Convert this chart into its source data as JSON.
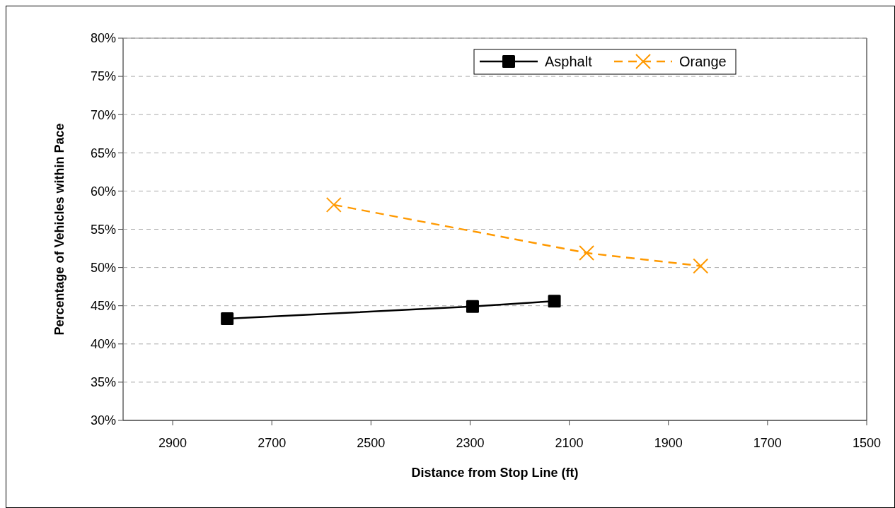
{
  "chart_data": {
    "type": "line",
    "xlabel": "Distance from Stop Line (ft)",
    "ylabel": "Percentage of Vehicles within Pace",
    "xlim": [
      3000,
      1500
    ],
    "xticks": [
      2900,
      2700,
      2500,
      2300,
      2100,
      1900,
      1700,
      1500
    ],
    "ylim": [
      30,
      80
    ],
    "yticks": [
      {
        "value": 30,
        "label": "30%"
      },
      {
        "value": 35,
        "label": "35%"
      },
      {
        "value": 40,
        "label": "40%"
      },
      {
        "value": 45,
        "label": "45%"
      },
      {
        "value": 50,
        "label": "50%"
      },
      {
        "value": 55,
        "label": "55%"
      },
      {
        "value": 60,
        "label": "60%"
      },
      {
        "value": 65,
        "label": "65%"
      },
      {
        "value": 70,
        "label": "70%"
      },
      {
        "value": 75,
        "label": "75%"
      },
      {
        "value": 80,
        "label": "80%"
      }
    ],
    "grid": "y",
    "legend": "top",
    "series": [
      {
        "name": "Asphalt",
        "color": "#000000",
        "marker": "square",
        "line_style": "solid",
        "x": [
          2790,
          2295,
          2130
        ],
        "values": [
          43.3,
          44.9,
          45.6
        ]
      },
      {
        "name": "Orange",
        "color": "#ff9900",
        "marker": "cross",
        "line_style": "dashed",
        "x": [
          2575,
          2065,
          1835
        ],
        "values": [
          58.2,
          51.9,
          50.2
        ]
      }
    ]
  }
}
